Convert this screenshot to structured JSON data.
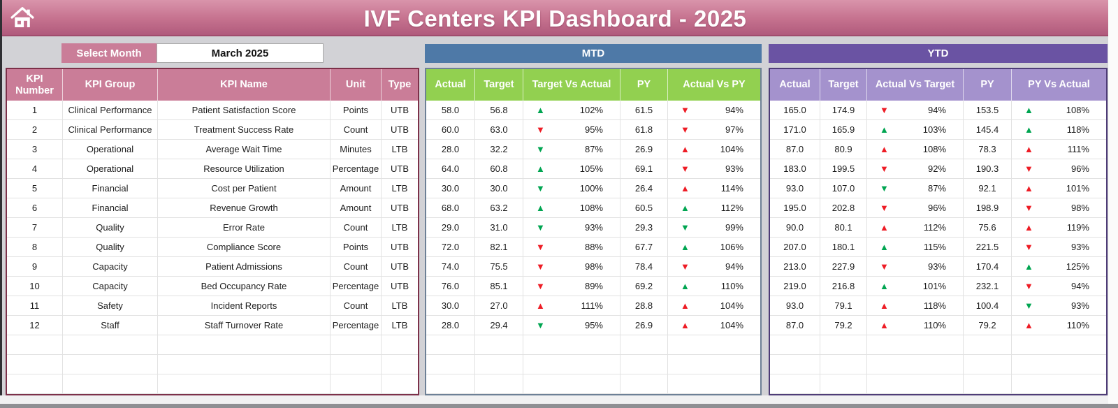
{
  "header": {
    "title": "IVF Centers KPI Dashboard - 2025"
  },
  "month_selector": {
    "label": "Select Month",
    "value": "March 2025"
  },
  "sections": {
    "mtd_title": "MTD",
    "ytd_title": "YTD"
  },
  "kpi_table": {
    "headers": [
      "KPI Number",
      "KPI Group",
      "KPI Name",
      "Unit",
      "Type"
    ]
  },
  "mtd_table": {
    "headers": [
      "Actual",
      "Target",
      "Target Vs Actual",
      "PY",
      "Actual Vs PY"
    ]
  },
  "ytd_table": {
    "headers": [
      "Actual",
      "Target",
      "Actual Vs Target",
      "PY",
      "PY Vs Actual"
    ]
  },
  "empty_rows": 3,
  "colors": {
    "page_bg": "#d2d2d6",
    "titlebar_top": "#d994ab",
    "titlebar_bottom": "#b05a7c",
    "table_header_pink": "#ca7d98",
    "table_border_maroon": "#7c3049",
    "mtd_bar_blue": "#4e79a7",
    "mtd_border": "#6d8096",
    "column_header_green": "#92d050",
    "ytd_bar_purple": "#6a53a3",
    "ytd_border": "#4e3c77",
    "column_header_lavender": "#a492cd",
    "trend_green": "#00a551",
    "trend_red": "#ee1c25"
  },
  "rows": [
    {
      "number": "1",
      "group": "Clinical Performance",
      "name": "Patient Satisfaction Score",
      "unit": "Points",
      "type": "UTB",
      "mtd": {
        "actual": "58.0",
        "target": "56.8",
        "target_vs_actual": {
          "dir": "up",
          "color": "green",
          "value": "102%"
        },
        "py": "61.5",
        "actual_vs_py": {
          "dir": "down",
          "color": "red",
          "value": "94%"
        }
      },
      "ytd": {
        "actual": "165.0",
        "target": "174.9",
        "actual_vs_target": {
          "dir": "down",
          "color": "red",
          "value": "94%"
        },
        "py": "153.5",
        "py_vs_actual": {
          "dir": "up",
          "color": "green",
          "value": "108%"
        }
      }
    },
    {
      "number": "2",
      "group": "Clinical Performance",
      "name": "Treatment Success Rate",
      "unit": "Count",
      "type": "UTB",
      "mtd": {
        "actual": "60.0",
        "target": "63.0",
        "target_vs_actual": {
          "dir": "down",
          "color": "red",
          "value": "95%"
        },
        "py": "61.8",
        "actual_vs_py": {
          "dir": "down",
          "color": "red",
          "value": "97%"
        }
      },
      "ytd": {
        "actual": "171.0",
        "target": "165.9",
        "actual_vs_target": {
          "dir": "up",
          "color": "green",
          "value": "103%"
        },
        "py": "145.4",
        "py_vs_actual": {
          "dir": "up",
          "color": "green",
          "value": "118%"
        }
      }
    },
    {
      "number": "3",
      "group": "Operational",
      "name": "Average Wait Time",
      "unit": "Minutes",
      "type": "LTB",
      "mtd": {
        "actual": "28.0",
        "target": "32.2",
        "target_vs_actual": {
          "dir": "down",
          "color": "green",
          "value": "87%"
        },
        "py": "26.9",
        "actual_vs_py": {
          "dir": "up",
          "color": "red",
          "value": "104%"
        }
      },
      "ytd": {
        "actual": "87.0",
        "target": "80.9",
        "actual_vs_target": {
          "dir": "up",
          "color": "red",
          "value": "108%"
        },
        "py": "78.3",
        "py_vs_actual": {
          "dir": "up",
          "color": "red",
          "value": "111%"
        }
      }
    },
    {
      "number": "4",
      "group": "Operational",
      "name": "Resource Utilization",
      "unit": "Percentage",
      "type": "UTB",
      "mtd": {
        "actual": "64.0",
        "target": "60.8",
        "target_vs_actual": {
          "dir": "up",
          "color": "green",
          "value": "105%"
        },
        "py": "69.1",
        "actual_vs_py": {
          "dir": "down",
          "color": "red",
          "value": "93%"
        }
      },
      "ytd": {
        "actual": "183.0",
        "target": "199.5",
        "actual_vs_target": {
          "dir": "down",
          "color": "red",
          "value": "92%"
        },
        "py": "190.3",
        "py_vs_actual": {
          "dir": "down",
          "color": "red",
          "value": "96%"
        }
      }
    },
    {
      "number": "5",
      "group": "Financial",
      "name": "Cost per Patient",
      "unit": "Amount",
      "type": "LTB",
      "mtd": {
        "actual": "30.0",
        "target": "30.0",
        "target_vs_actual": {
          "dir": "down",
          "color": "green",
          "value": "100%"
        },
        "py": "26.4",
        "actual_vs_py": {
          "dir": "up",
          "color": "red",
          "value": "114%"
        }
      },
      "ytd": {
        "actual": "93.0",
        "target": "107.0",
        "actual_vs_target": {
          "dir": "down",
          "color": "green",
          "value": "87%"
        },
        "py": "92.1",
        "py_vs_actual": {
          "dir": "up",
          "color": "red",
          "value": "101%"
        }
      }
    },
    {
      "number": "6",
      "group": "Financial",
      "name": "Revenue Growth",
      "unit": "Amount",
      "type": "UTB",
      "mtd": {
        "actual": "68.0",
        "target": "63.2",
        "target_vs_actual": {
          "dir": "up",
          "color": "green",
          "value": "108%"
        },
        "py": "60.5",
        "actual_vs_py": {
          "dir": "up",
          "color": "green",
          "value": "112%"
        }
      },
      "ytd": {
        "actual": "195.0",
        "target": "202.8",
        "actual_vs_target": {
          "dir": "down",
          "color": "red",
          "value": "96%"
        },
        "py": "198.9",
        "py_vs_actual": {
          "dir": "down",
          "color": "red",
          "value": "98%"
        }
      }
    },
    {
      "number": "7",
      "group": "Quality",
      "name": "Error Rate",
      "unit": "Count",
      "type": "LTB",
      "mtd": {
        "actual": "29.0",
        "target": "31.0",
        "target_vs_actual": {
          "dir": "down",
          "color": "green",
          "value": "93%"
        },
        "py": "29.3",
        "actual_vs_py": {
          "dir": "down",
          "color": "green",
          "value": "99%"
        }
      },
      "ytd": {
        "actual": "90.0",
        "target": "80.1",
        "actual_vs_target": {
          "dir": "up",
          "color": "red",
          "value": "112%"
        },
        "py": "75.6",
        "py_vs_actual": {
          "dir": "up",
          "color": "red",
          "value": "119%"
        }
      }
    },
    {
      "number": "8",
      "group": "Quality",
      "name": "Compliance Score",
      "unit": "Points",
      "type": "UTB",
      "mtd": {
        "actual": "72.0",
        "target": "82.1",
        "target_vs_actual": {
          "dir": "down",
          "color": "red",
          "value": "88%"
        },
        "py": "67.7",
        "actual_vs_py": {
          "dir": "up",
          "color": "green",
          "value": "106%"
        }
      },
      "ytd": {
        "actual": "207.0",
        "target": "180.1",
        "actual_vs_target": {
          "dir": "up",
          "color": "green",
          "value": "115%"
        },
        "py": "221.5",
        "py_vs_actual": {
          "dir": "down",
          "color": "red",
          "value": "93%"
        }
      }
    },
    {
      "number": "9",
      "group": "Capacity",
      "name": "Patient Admissions",
      "unit": "Count",
      "type": "UTB",
      "mtd": {
        "actual": "74.0",
        "target": "75.5",
        "target_vs_actual": {
          "dir": "down",
          "color": "red",
          "value": "98%"
        },
        "py": "78.4",
        "actual_vs_py": {
          "dir": "down",
          "color": "red",
          "value": "94%"
        }
      },
      "ytd": {
        "actual": "213.0",
        "target": "227.9",
        "actual_vs_target": {
          "dir": "down",
          "color": "red",
          "value": "93%"
        },
        "py": "170.4",
        "py_vs_actual": {
          "dir": "up",
          "color": "green",
          "value": "125%"
        }
      }
    },
    {
      "number": "10",
      "group": "Capacity",
      "name": "Bed Occupancy Rate",
      "unit": "Percentage",
      "type": "UTB",
      "mtd": {
        "actual": "76.0",
        "target": "85.1",
        "target_vs_actual": {
          "dir": "down",
          "color": "red",
          "value": "89%"
        },
        "py": "69.2",
        "actual_vs_py": {
          "dir": "up",
          "color": "green",
          "value": "110%"
        }
      },
      "ytd": {
        "actual": "219.0",
        "target": "216.8",
        "actual_vs_target": {
          "dir": "up",
          "color": "green",
          "value": "101%"
        },
        "py": "232.1",
        "py_vs_actual": {
          "dir": "down",
          "color": "red",
          "value": "94%"
        }
      }
    },
    {
      "number": "11",
      "group": "Safety",
      "name": "Incident Reports",
      "unit": "Count",
      "type": "LTB",
      "mtd": {
        "actual": "30.0",
        "target": "27.0",
        "target_vs_actual": {
          "dir": "up",
          "color": "red",
          "value": "111%"
        },
        "py": "28.8",
        "actual_vs_py": {
          "dir": "up",
          "color": "red",
          "value": "104%"
        }
      },
      "ytd": {
        "actual": "93.0",
        "target": "79.1",
        "actual_vs_target": {
          "dir": "up",
          "color": "red",
          "value": "118%"
        },
        "py": "100.4",
        "py_vs_actual": {
          "dir": "down",
          "color": "green",
          "value": "93%"
        }
      }
    },
    {
      "number": "12",
      "group": "Staff",
      "name": "Staff Turnover Rate",
      "unit": "Percentage",
      "type": "LTB",
      "mtd": {
        "actual": "28.0",
        "target": "29.4",
        "target_vs_actual": {
          "dir": "down",
          "color": "green",
          "value": "95%"
        },
        "py": "26.9",
        "actual_vs_py": {
          "dir": "up",
          "color": "red",
          "value": "104%"
        }
      },
      "ytd": {
        "actual": "87.0",
        "target": "79.2",
        "actual_vs_target": {
          "dir": "up",
          "color": "red",
          "value": "110%"
        },
        "py": "79.2",
        "py_vs_actual": {
          "dir": "up",
          "color": "red",
          "value": "110%"
        }
      }
    }
  ]
}
